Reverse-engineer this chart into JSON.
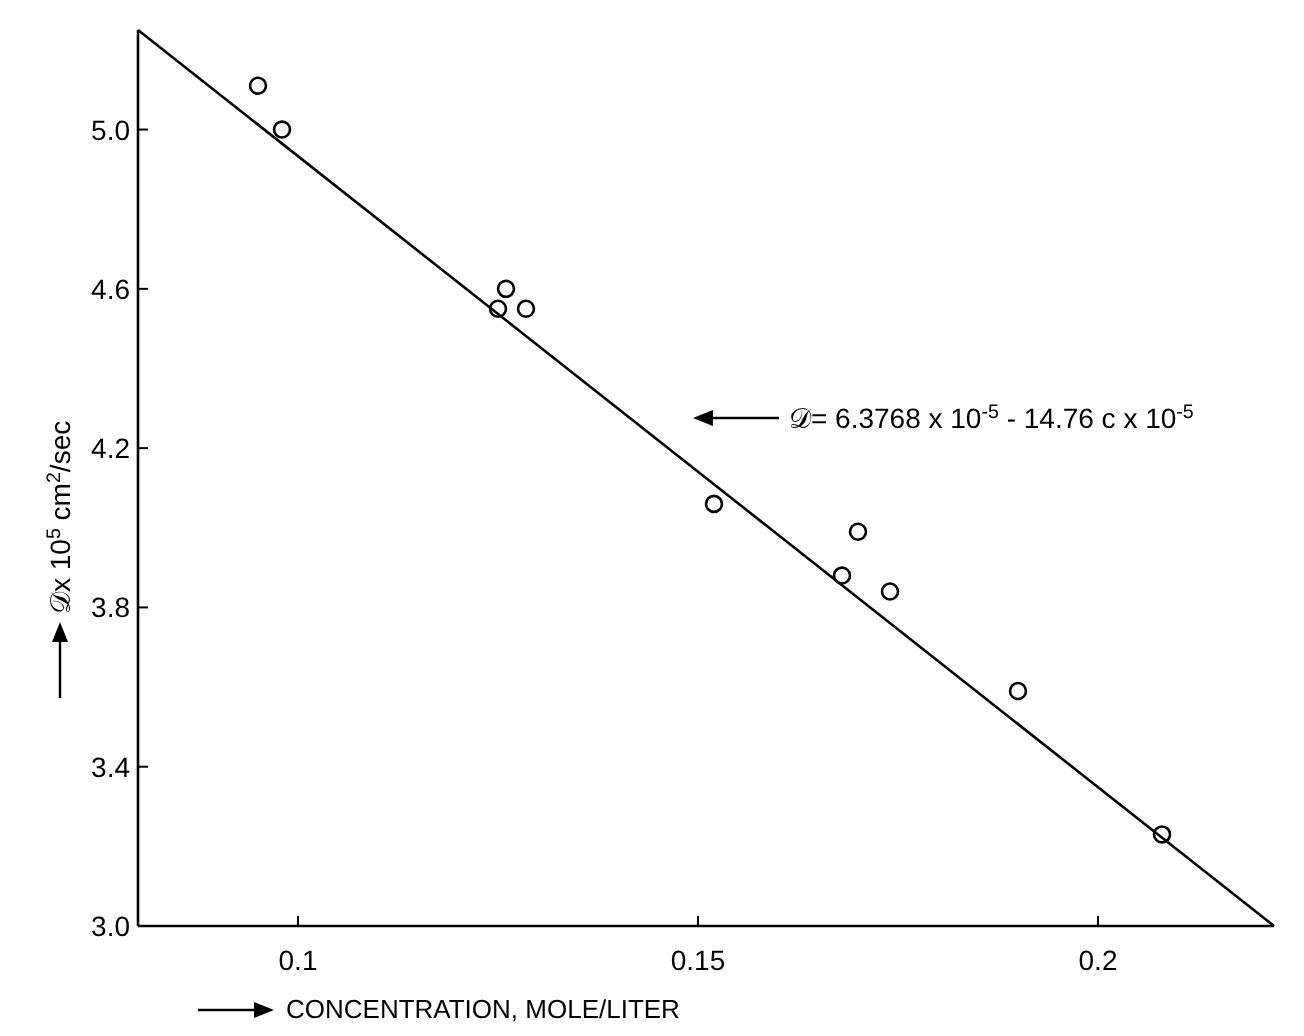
{
  "chart_data": {
    "type": "scatter",
    "xlabel": "CONCENTRATION, MOLE/LITER",
    "ylabel": "𝒟x 10$^{5}$ cm$^{2}$/sec",
    "xlim": [
      0.08,
      0.222
    ],
    "xticks": [
      0.1,
      0.15,
      0.2
    ],
    "ylim": [
      3.0,
      5.25
    ],
    "yticks": [
      {
        "value": 3.0,
        "label": "3.0"
      },
      3.4,
      3.8,
      4.2,
      4.6,
      {
        "value": 5.0,
        "label": "5.0"
      }
    ],
    "grid": false,
    "series": [
      {
        "marker": "circle",
        "color": "#000000",
        "x": [
          0.095,
          0.098,
          0.126,
          0.125,
          0.1285,
          0.152,
          0.17,
          0.168,
          0.174,
          0.19,
          0.208
        ],
        "values": [
          5.11,
          5.0,
          4.6,
          4.55,
          4.55,
          4.06,
          3.99,
          3.88,
          3.84,
          3.59,
          3.23
        ]
      },
      {
        "type": "line",
        "color": "#000000",
        "x": [
          0.08,
          0.222
        ],
        "values": [
          5.25,
          3.0
        ]
      }
    ],
    "annotations": [
      "𝒟= 6.3768 x 10$^{-5}$ - 14.76 c  x 10$^{-5}$"
    ]
  }
}
